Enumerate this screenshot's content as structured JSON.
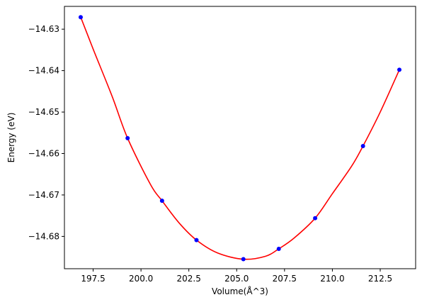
{
  "chart_data": {
    "type": "scatter",
    "title": "",
    "xlabel": "Volume(Å^3)",
    "ylabel": "Energy (eV)",
    "xlim": [
      196.0,
      214.35
    ],
    "ylim": [
      -14.6878,
      -14.6245
    ],
    "xticks": [
      197.5,
      200.0,
      202.5,
      205.0,
      207.5,
      210.0,
      212.5
    ],
    "xtick_labels": [
      "197.5",
      "200.0",
      "202.5",
      "205.0",
      "207.5",
      "210.0",
      "212.5"
    ],
    "yticks": [
      -14.63,
      -14.64,
      -14.65,
      -14.66,
      -14.67,
      -14.68
    ],
    "ytick_labels": [
      "−14.63",
      "−14.64",
      "−14.65",
      "−14.66",
      "−14.67",
      "−14.68"
    ],
    "grid": false,
    "legend": "none",
    "series": [
      {
        "kind": "points",
        "color": "#0000ff",
        "x": [
          196.85,
          199.3,
          201.1,
          202.9,
          205.35,
          207.2,
          209.1,
          211.6,
          213.5
        ],
        "y": [
          -14.6271,
          -14.6563,
          -14.6714,
          -14.6809,
          -14.6855,
          -14.683,
          -14.6756,
          -14.6582,
          -14.6398
        ]
      },
      {
        "kind": "fit-curve",
        "color": "#ff0000",
        "x": [
          196.85,
          197.5,
          198.5,
          199.3,
          200.5,
          201.1,
          202.0,
          202.9,
          204.0,
          205.35,
          206.5,
          207.2,
          208.0,
          209.1,
          210.0,
          211.0,
          211.6,
          212.5,
          213.5
        ],
        "y": [
          -14.6271,
          -14.6348,
          -14.6463,
          -14.6563,
          -14.6675,
          -14.6714,
          -14.6768,
          -14.6809,
          -14.684,
          -14.6855,
          -14.6848,
          -14.683,
          -14.6804,
          -14.6756,
          -14.6697,
          -14.6631,
          -14.6582,
          -14.65,
          -14.6398
        ]
      }
    ]
  }
}
